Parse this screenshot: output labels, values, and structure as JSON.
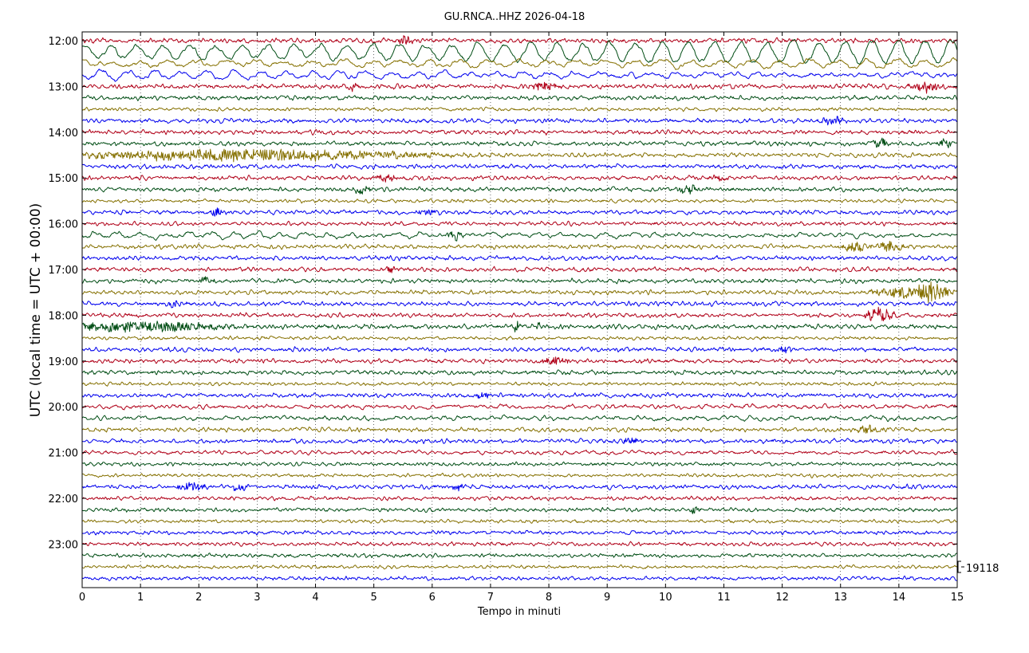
{
  "chart_data": {
    "type": "line",
    "title": "GU.RNCA..HHZ 2026-04-18",
    "xlabel": "Tempo in minuti",
    "ylabel": "UTC (local time = UTC + 00:00)",
    "xlim": [
      0,
      15
    ],
    "x_ticks": [
      "0",
      "1",
      "2",
      "3",
      "4",
      "5",
      "6",
      "7",
      "8",
      "9",
      "10",
      "11",
      "12",
      "13",
      "14",
      "15"
    ],
    "y_ticks": [
      "12:00",
      "13:00",
      "14:00",
      "15:00",
      "16:00",
      "17:00",
      "18:00",
      "19:00",
      "20:00",
      "21:00",
      "22:00",
      "23:00"
    ],
    "scale_label": "19118",
    "grid": true,
    "trace_colors": [
      "#b00018",
      "#004d14",
      "#857000",
      "#0000ee"
    ],
    "traces": [
      {
        "start": "12:00",
        "amp": 2.2,
        "lp": 1.0,
        "bursts": [
          [
            5.55,
            0.08,
            6
          ]
        ]
      },
      {
        "start": "12:15",
        "amp": 2.4,
        "lp": 3.5,
        "swell": [
          7,
          14,
          7,
          0.45
        ]
      },
      {
        "start": "12:30",
        "amp": 2.4,
        "lp": 4.0,
        "swell": [
          5,
          13,
          0,
          0.5
        ]
      },
      {
        "start": "12:45",
        "amp": 2.4,
        "lp": 4.0,
        "swell": [
          5,
          0,
          4.5,
          0.45
        ]
      },
      {
        "start": "13:00",
        "amp": 2.2,
        "lp": 1.0,
        "bursts": [
          [
            4.65,
            0.08,
            4
          ],
          [
            7.9,
            0.2,
            5
          ],
          [
            14.5,
            0.2,
            5
          ]
        ]
      },
      {
        "start": "13:15",
        "amp": 2.0,
        "lp": 1.0
      },
      {
        "start": "13:30",
        "amp": 1.6,
        "lp": 1.0
      },
      {
        "start": "13:45",
        "amp": 2.0,
        "lp": 1.0,
        "bursts": [
          [
            12.85,
            0.15,
            4
          ]
        ]
      },
      {
        "start": "14:00",
        "amp": 2.0,
        "lp": 1.0
      },
      {
        "start": "14:15",
        "amp": 2.0,
        "lp": 1.0,
        "bursts": [
          [
            13.7,
            0.1,
            6
          ],
          [
            14.8,
            0.08,
            5
          ]
        ]
      },
      {
        "start": "14:30",
        "amp": 2.0,
        "lp": 1.0,
        "bursts": [
          [
            2.9,
            2.0,
            7
          ]
        ]
      },
      {
        "start": "14:45",
        "amp": 2.0,
        "lp": 1.0
      },
      {
        "start": "15:00",
        "amp": 2.0,
        "lp": 1.0,
        "bursts": [
          [
            5.2,
            0.15,
            4
          ],
          [
            10.9,
            0.1,
            4
          ]
        ]
      },
      {
        "start": "15:15",
        "amp": 2.0,
        "lp": 1.0,
        "bursts": [
          [
            4.8,
            0.1,
            5
          ],
          [
            10.4,
            0.15,
            5
          ]
        ]
      },
      {
        "start": "15:30",
        "amp": 1.6,
        "lp": 1.0
      },
      {
        "start": "15:45",
        "amp": 2.0,
        "lp": 1.0,
        "bursts": [
          [
            2.3,
            0.08,
            5
          ],
          [
            5.9,
            0.1,
            4
          ]
        ]
      },
      {
        "start": "16:00",
        "amp": 1.8,
        "lp": 1.0
      },
      {
        "start": "16:15",
        "amp": 2.4,
        "lp": 3.5,
        "swell": [
          3,
          0,
          3.5,
          0.4
        ],
        "bursts": [
          [
            6.4,
            0.1,
            5
          ]
        ]
      },
      {
        "start": "16:30",
        "amp": 2.0,
        "lp": 1.0,
        "bursts": [
          [
            13.25,
            0.15,
            6
          ],
          [
            13.8,
            0.2,
            6
          ]
        ]
      },
      {
        "start": "16:45",
        "amp": 2.0,
        "lp": 1.0
      },
      {
        "start": "17:00",
        "amp": 2.0,
        "lp": 1.0,
        "bursts": [
          [
            5.3,
            0.1,
            4
          ]
        ]
      },
      {
        "start": "17:15",
        "amp": 2.0,
        "lp": 1.0,
        "bursts": [
          [
            2.1,
            0.1,
            4
          ]
        ]
      },
      {
        "start": "17:30",
        "amp": 2.0,
        "lp": 1.0,
        "bursts": [
          [
            14.55,
            0.2,
            13
          ],
          [
            14.0,
            0.3,
            6
          ]
        ]
      },
      {
        "start": "17:45",
        "amp": 2.0,
        "lp": 1.0,
        "bursts": [
          [
            1.6,
            0.1,
            4
          ]
        ]
      },
      {
        "start": "18:00",
        "amp": 2.0,
        "lp": 1.0,
        "bursts": [
          [
            13.65,
            0.15,
            9
          ]
        ]
      },
      {
        "start": "18:15",
        "amp": 2.2,
        "lp": 1.0,
        "bursts": [
          [
            1.0,
            1.0,
            6
          ],
          [
            7.45,
            0.05,
            6
          ],
          [
            7.8,
            0.05,
            5
          ]
        ]
      },
      {
        "start": "18:30",
        "amp": 1.6,
        "lp": 1.0
      },
      {
        "start": "18:45",
        "amp": 2.0,
        "lp": 1.0,
        "bursts": [
          [
            12.05,
            0.1,
            4
          ]
        ]
      },
      {
        "start": "19:00",
        "amp": 2.0,
        "lp": 1.0,
        "bursts": [
          [
            8.1,
            0.15,
            5
          ]
        ]
      },
      {
        "start": "19:15",
        "amp": 2.0,
        "lp": 1.0
      },
      {
        "start": "19:30",
        "amp": 1.6,
        "lp": 1.0
      },
      {
        "start": "19:45",
        "amp": 2.0,
        "lp": 1.0,
        "bursts": [
          [
            6.9,
            0.08,
            5
          ]
        ]
      },
      {
        "start": "20:00",
        "amp": 2.2,
        "lp": 2.0
      },
      {
        "start": "20:15",
        "amp": 2.4,
        "lp": 2.5
      },
      {
        "start": "20:30",
        "amp": 2.0,
        "lp": 1.0,
        "bursts": [
          [
            13.5,
            0.15,
            5
          ]
        ]
      },
      {
        "start": "20:45",
        "amp": 2.0,
        "lp": 1.0,
        "bursts": [
          [
            9.4,
            0.1,
            4
          ]
        ]
      },
      {
        "start": "21:00",
        "amp": 2.0,
        "lp": 1.5
      },
      {
        "start": "21:15",
        "amp": 1.8,
        "lp": 1.0
      },
      {
        "start": "21:30",
        "amp": 1.6,
        "lp": 1.0
      },
      {
        "start": "21:45",
        "amp": 2.0,
        "lp": 1.0,
        "bursts": [
          [
            1.9,
            0.2,
            5
          ],
          [
            2.7,
            0.1,
            5
          ],
          [
            6.4,
            0.1,
            4
          ]
        ]
      },
      {
        "start": "22:00",
        "amp": 1.8,
        "lp": 1.0
      },
      {
        "start": "22:15",
        "amp": 1.8,
        "lp": 1.0,
        "bursts": [
          [
            10.5,
            0.06,
            4
          ]
        ]
      },
      {
        "start": "22:30",
        "amp": 1.6,
        "lp": 1.0
      },
      {
        "start": "22:45",
        "amp": 1.8,
        "lp": 1.0
      },
      {
        "start": "23:00",
        "amp": 1.8,
        "lp": 1.0
      },
      {
        "start": "23:15",
        "amp": 1.8,
        "lp": 1.0
      },
      {
        "start": "23:30",
        "amp": 1.6,
        "lp": 1.0
      },
      {
        "start": "23:45",
        "amp": 1.8,
        "lp": 1.0
      }
    ]
  }
}
